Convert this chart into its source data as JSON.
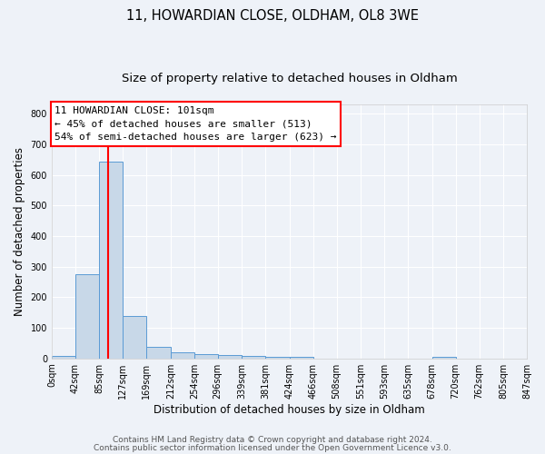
{
  "title_line1": "11, HOWARDIAN CLOSE, OLDHAM, OL8 3WE",
  "title_line2": "Size of property relative to detached houses in Oldham",
  "xlabel": "Distribution of detached houses by size in Oldham",
  "ylabel": "Number of detached properties",
  "bar_edges": [
    0,
    42,
    85,
    127,
    169,
    212,
    254,
    296,
    339,
    381,
    424,
    466,
    508,
    551,
    593,
    635,
    678,
    720,
    762,
    805,
    847
  ],
  "bar_heights": [
    8,
    275,
    643,
    140,
    38,
    20,
    13,
    11,
    8,
    5,
    5,
    0,
    0,
    0,
    0,
    0,
    5,
    0,
    0,
    0
  ],
  "bar_color": "#c8d8e8",
  "bar_edge_color": "#5b9bd5",
  "vline_x": 101,
  "vline_color": "red",
  "annotation_lines": [
    "11 HOWARDIAN CLOSE: 101sqm",
    "← 45% of detached houses are smaller (513)",
    "54% of semi-detached houses are larger (623) →"
  ],
  "box_color": "white",
  "box_edge_color": "red",
  "ylim": [
    0,
    830
  ],
  "xlim": [
    0,
    847
  ],
  "xtick_positions": [
    0,
    42,
    85,
    127,
    169,
    212,
    254,
    296,
    339,
    381,
    424,
    466,
    508,
    551,
    593,
    635,
    678,
    720,
    762,
    805,
    847
  ],
  "xtick_labels": [
    "0sqm",
    "42sqm",
    "85sqm",
    "127sqm",
    "169sqm",
    "212sqm",
    "254sqm",
    "296sqm",
    "339sqm",
    "381sqm",
    "424sqm",
    "466sqm",
    "508sqm",
    "551sqm",
    "593sqm",
    "635sqm",
    "678sqm",
    "720sqm",
    "762sqm",
    "805sqm",
    "847sqm"
  ],
  "ytick_positions": [
    0,
    100,
    200,
    300,
    400,
    500,
    600,
    700,
    800
  ],
  "ytick_labels": [
    "0",
    "100",
    "200",
    "300",
    "400",
    "500",
    "600",
    "700",
    "800"
  ],
  "footer_line1": "Contains HM Land Registry data © Crown copyright and database right 2024.",
  "footer_line2": "Contains public sector information licensed under the Open Government Licence v3.0.",
  "bg_color": "#eef2f8",
  "grid_color": "white",
  "title_fontsize": 10.5,
  "subtitle_fontsize": 9.5,
  "axis_label_fontsize": 8.5,
  "tick_fontsize": 7,
  "annotation_fontsize": 8,
  "footer_fontsize": 6.5
}
